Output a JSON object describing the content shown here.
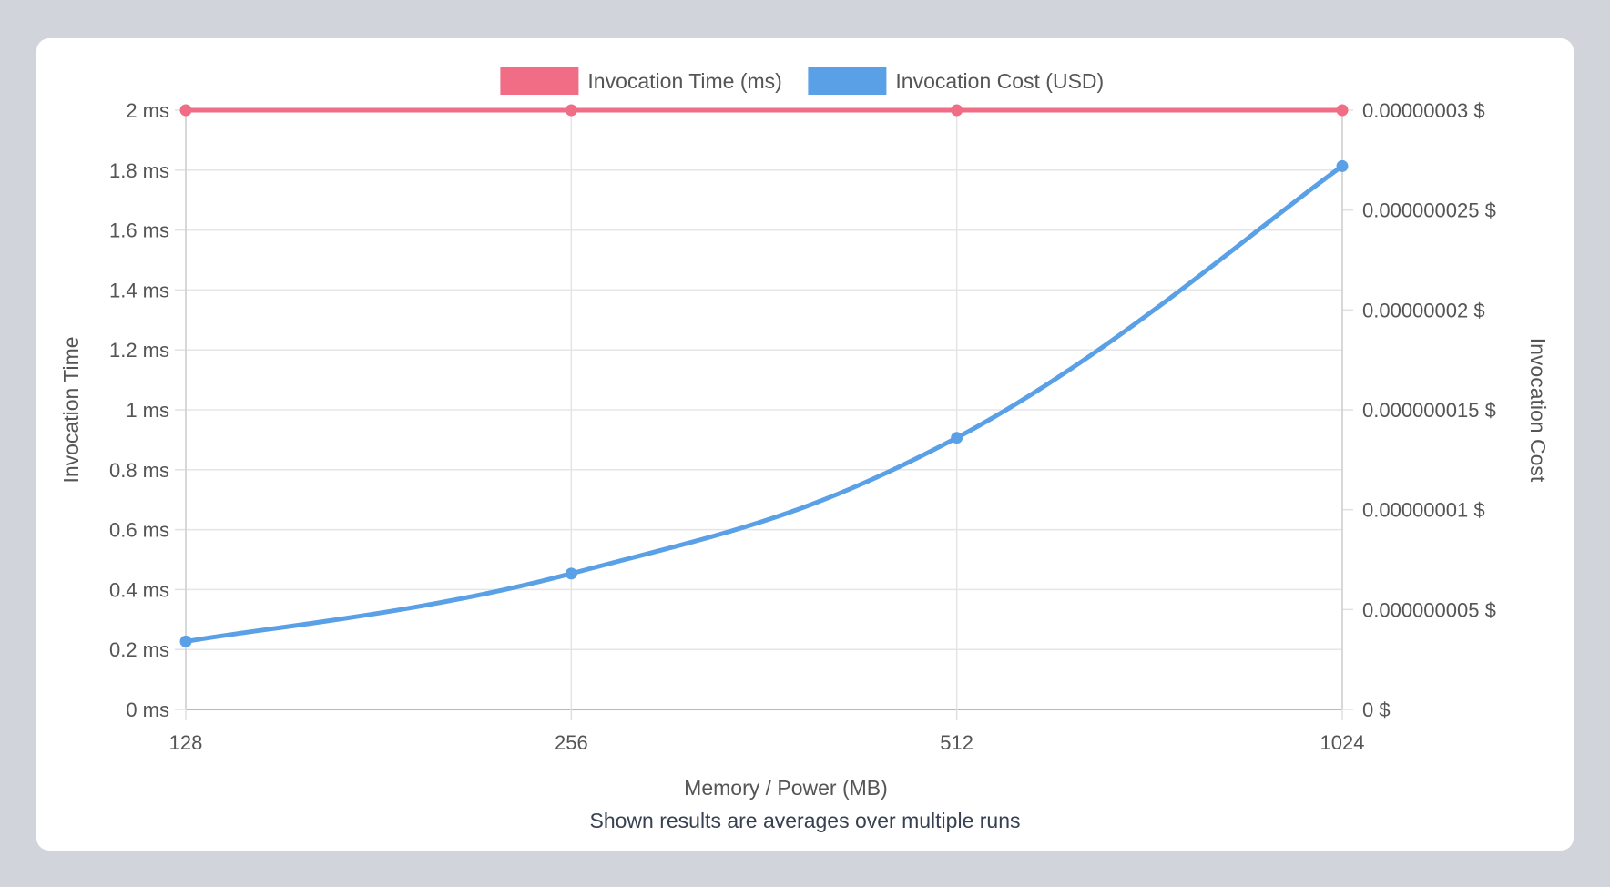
{
  "footnote": "Shown results are averages over multiple runs",
  "chart_data": {
    "type": "line",
    "categories": [
      "128",
      "256",
      "512",
      "1024"
    ],
    "xlabel": "Memory / Power (MB)",
    "ylabel_left": "Invocation Time",
    "ylabel_right": "Invocation Cost",
    "legend_position": "top",
    "grid": true,
    "left_axis": {
      "range": [
        0,
        2
      ],
      "ticks": [
        0,
        0.2,
        0.4,
        0.6,
        0.8,
        1,
        1.2,
        1.4,
        1.6,
        1.8,
        2
      ],
      "tick_labels": [
        "0 ms",
        "0.2 ms",
        "0.4 ms",
        "0.6 ms",
        "0.8 ms",
        "1 ms",
        "1.2 ms",
        "1.4 ms",
        "1.6 ms",
        "1.8 ms",
        "2 ms"
      ]
    },
    "right_axis": {
      "range": [
        0,
        3e-08
      ],
      "ticks": [
        0,
        5e-09,
        1e-08,
        1.5e-08,
        2e-08,
        2.5e-08,
        3e-08
      ],
      "tick_labels": [
        "0 $",
        "0.000000005 $",
        "0.00000001 $",
        "0.000000015 $",
        "0.00000002 $",
        "0.000000025 $",
        "0.00000003 $"
      ]
    },
    "series": [
      {
        "name": "Invocation Time (ms)",
        "axis": "left",
        "color": "#f06d85",
        "values": [
          2,
          2,
          2,
          2
        ]
      },
      {
        "name": "Invocation Cost (USD)",
        "axis": "right",
        "color": "#59a0e6",
        "values": [
          3.4e-09,
          6.8e-09,
          1.36e-08,
          2.72e-08
        ]
      }
    ]
  }
}
